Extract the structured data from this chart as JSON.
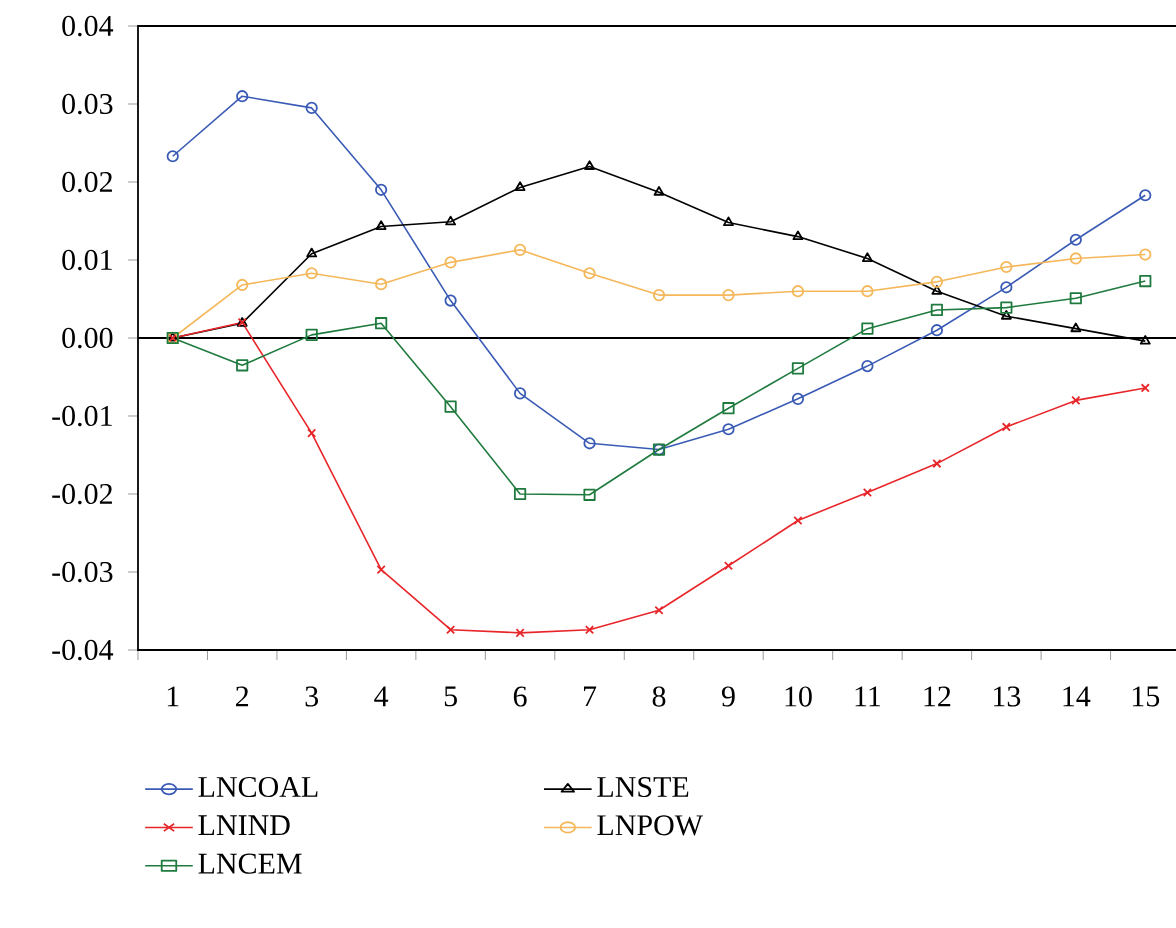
{
  "chart_data": {
    "type": "line",
    "categories": [
      "1",
      "2",
      "3",
      "4",
      "5",
      "6",
      "7",
      "8",
      "9",
      "10",
      "11",
      "12",
      "13",
      "14",
      "15"
    ],
    "series": [
      {
        "name": "LNCOAL",
        "color": "#3a5bb5",
        "marker": "circle",
        "values": [
          0.0233,
          0.031,
          0.0295,
          0.019,
          0.0048,
          -0.0071,
          -0.0135,
          -0.0143,
          -0.0117,
          -0.0078,
          -0.0036,
          0.001,
          0.0065,
          0.0126,
          0.0183
        ]
      },
      {
        "name": "LNIND",
        "color": "#e8262a",
        "marker": "cross",
        "values": [
          0,
          0.002,
          -0.0122,
          -0.0297,
          -0.0374,
          -0.0378,
          -0.0374,
          -0.0349,
          -0.0292,
          -0.0234,
          -0.0198,
          -0.0161,
          -0.0114,
          -0.008,
          -0.0064
        ]
      },
      {
        "name": "LNCEM",
        "color": "#1f7a3e",
        "marker": "square",
        "values": [
          0,
          -0.0035,
          0.0004,
          0.0019,
          -0.0088,
          -0.02,
          -0.0201,
          -0.0143,
          -0.009,
          -0.0039,
          0.0012,
          0.0036,
          0.0039,
          0.0051,
          0.0073
        ]
      },
      {
        "name": "LNSTE",
        "color": "#000000",
        "marker": "triangle",
        "values": [
          0,
          0.0019,
          0.0108,
          0.0143,
          0.0149,
          0.0193,
          0.022,
          0.0187,
          0.0148,
          0.013,
          0.0102,
          0.006,
          0.0028,
          0.0012,
          -0.0004
        ]
      },
      {
        "name": "LNPOW",
        "color": "#f5b75a",
        "marker": "circle",
        "values": [
          0,
          0.0068,
          0.0083,
          0.0069,
          0.0097,
          0.0113,
          0.0083,
          0.0055,
          0.0055,
          0.006,
          0.006,
          0.0072,
          0.0091,
          0.0102,
          0.0107
        ]
      }
    ],
    "ylim": [
      -0.04,
      0.04
    ],
    "yticks": [
      {
        "value": -0.04,
        "label": "-0.04"
      },
      {
        "value": -0.03,
        "label": "-0.03"
      },
      {
        "value": -0.02,
        "label": "-0.02"
      },
      {
        "value": -0.01,
        "label": "-0.01"
      },
      {
        "value": 0,
        "label": "0.00"
      },
      {
        "value": 0.01,
        "label": "0.01"
      },
      {
        "value": 0.02,
        "label": "0.02"
      },
      {
        "value": 0.03,
        "label": "0.03"
      },
      {
        "value": 0.04,
        "label": "0.04"
      }
    ],
    "ref_lines": [
      {
        "axis": "y",
        "value": 0,
        "color": "#000000"
      }
    ],
    "legend": "bottom",
    "grid": false,
    "line_style": "solid"
  }
}
